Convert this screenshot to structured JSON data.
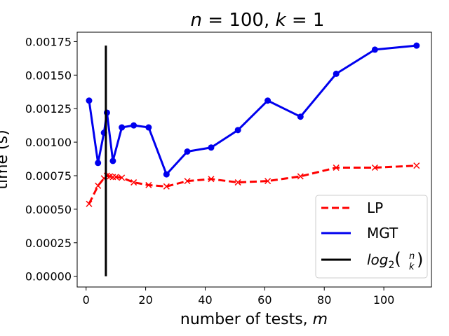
{
  "chart_data": {
    "type": "line",
    "title": "n = 100, k = 1",
    "xlabel": "number of tests, m",
    "ylabel": "time (s)",
    "xlim": [
      -3,
      116
    ],
    "ylim": [
      -8e-05,
      0.00182
    ],
    "x_ticks": [
      0,
      20,
      40,
      60,
      80,
      100
    ],
    "x_tick_labels": [
      "0",
      "20",
      "40",
      "60",
      "80",
      "100"
    ],
    "y_ticks": [
      0,
      0.00025,
      0.0005,
      0.00075,
      0.001,
      0.00125,
      0.0015,
      0.00175
    ],
    "y_tick_labels": [
      "0.00000",
      "0.00025",
      "0.00050",
      "0.00075",
      "0.00100",
      "0.00125",
      "0.00150",
      "0.00175"
    ],
    "grid": false,
    "legend_position": "lower-right",
    "series": [
      {
        "name": "LP",
        "color": "#ff0000",
        "style": "dashed",
        "marker": "x",
        "x": [
          1,
          4,
          6,
          7,
          8,
          9,
          10,
          12,
          16,
          21,
          27,
          34,
          42,
          51,
          61,
          72,
          84,
          97,
          111
        ],
        "y": [
          0.00054,
          0.000675,
          0.00073,
          0.00075,
          0.000745,
          0.00074,
          0.00074,
          0.000735,
          0.0007,
          0.00068,
          0.00067,
          0.00071,
          0.000725,
          0.0007,
          0.00071,
          0.000745,
          0.00081,
          0.00081,
          0.000825
        ]
      },
      {
        "name": "MGT",
        "color": "#0000ee",
        "style": "solid",
        "marker": "o",
        "x": [
          1,
          4,
          6,
          7,
          9,
          12,
          16,
          21,
          27,
          34,
          42,
          51,
          61,
          72,
          84,
          97,
          111
        ],
        "y": [
          0.00131,
          0.000845,
          0.00107,
          0.00122,
          0.00086,
          0.00111,
          0.001125,
          0.00111,
          0.00076,
          0.00093,
          0.00096,
          0.00109,
          0.00131,
          0.00119,
          0.00151,
          0.00169,
          0.00172
        ]
      },
      {
        "name": "log2(n k)",
        "legend_math": {
          "prefix": "log",
          "subscript": "2",
          "binom_top": "n",
          "binom_bottom": "k"
        },
        "color": "#000000",
        "style": "vertical-line",
        "x": 6.64,
        "y_range": [
          0,
          0.00172
        ]
      }
    ]
  }
}
